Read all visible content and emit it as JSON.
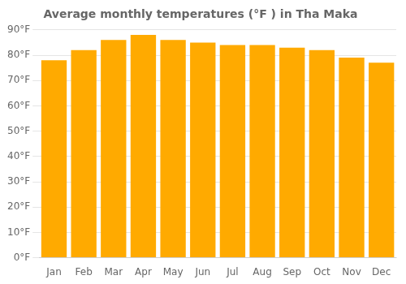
{
  "chart_data": {
    "type": "bar",
    "title": "Average monthly temperatures (°F ) in Tha Maka",
    "categories": [
      "Jan",
      "Feb",
      "Mar",
      "Apr",
      "May",
      "Jun",
      "Jul",
      "Aug",
      "Sep",
      "Oct",
      "Nov",
      "Dec"
    ],
    "values": [
      78,
      82,
      86,
      88,
      86,
      85,
      84,
      84,
      83,
      82,
      79,
      77
    ],
    "color": "#FFAA00",
    "ylim": [
      0,
      90
    ],
    "yticks": [
      {
        "value": 0,
        "label": "0°F"
      },
      {
        "value": 10,
        "label": "10°F"
      },
      {
        "value": 20,
        "label": "20°F"
      },
      {
        "value": 30,
        "label": "30°F"
      },
      {
        "value": 40,
        "label": "40°F"
      },
      {
        "value": 50,
        "label": "50°F"
      },
      {
        "value": 60,
        "label": "60°F"
      },
      {
        "value": 70,
        "label": "70°F"
      },
      {
        "value": 80,
        "label": "80°F"
      },
      {
        "value": 90,
        "label": "90°F"
      }
    ],
    "grid": true
  }
}
